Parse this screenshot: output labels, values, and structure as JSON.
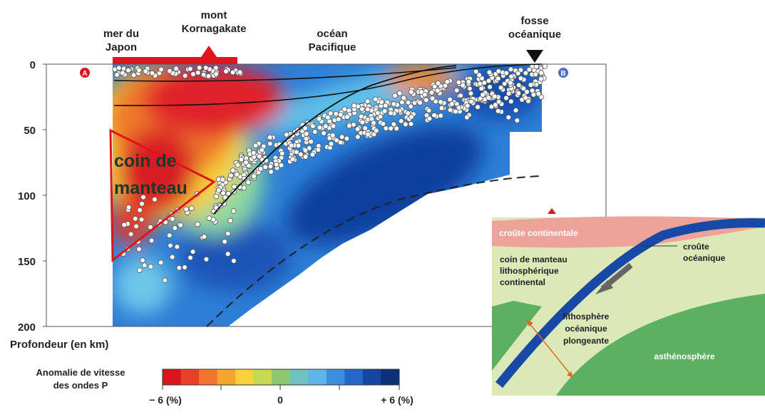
{
  "places": [
    {
      "lines": [
        "mer du",
        "Japon"
      ]
    },
    {
      "lines": [
        "mont",
        "Kornagakate"
      ]
    },
    {
      "lines": [
        "océan",
        "Pacifique"
      ]
    },
    {
      "lines": [
        "fosse",
        "océanique"
      ]
    }
  ],
  "markers": [
    "A",
    "B"
  ],
  "depth_ticks": [
    "0",
    "50",
    "100",
    "150",
    "200"
  ],
  "depth_label": "Profondeur (en km)",
  "wedge_label": [
    "coin de",
    "manteau"
  ],
  "legend": {
    "title": [
      "Anomalie de vitesse",
      "des ondes P"
    ],
    "min": "− 6 (%)",
    "mid": "0",
    "max": "+ 6 (%)"
  },
  "inset": {
    "continental_crust": "croûte continentale",
    "oceanic_crust": [
      "croûte",
      "océanique"
    ],
    "mantle_wedge": [
      "coin de manteau",
      "lithosphérique",
      "continental"
    ],
    "slab": [
      "lithosphère",
      "océanique",
      "plongeante"
    ],
    "asthenosphere": "asthénosphère"
  }
}
